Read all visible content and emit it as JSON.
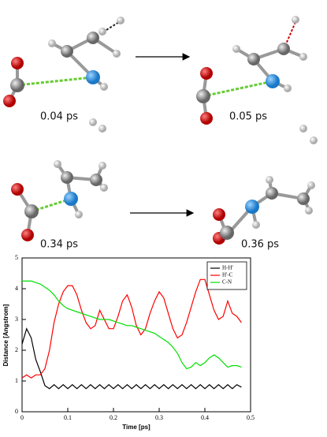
{
  "snapshots": {
    "labels": [
      "0.04 ps",
      "0.05 ps",
      "0.34 ps",
      "0.36 ps"
    ]
  },
  "chart_data": {
    "type": "line",
    "xlabel": "Time [ps]",
    "ylabel": "Distance [Angstrom]",
    "xlim": [
      0,
      0.5
    ],
    "ylim": [
      0,
      5
    ],
    "xticks": [
      0,
      0.1,
      0.2,
      0.3,
      0.4,
      0.5
    ],
    "yticks": [
      0,
      1,
      2,
      3,
      4,
      5
    ],
    "legend": "top-right",
    "x": [
      0,
      0.01,
      0.02,
      0.03,
      0.04,
      0.05,
      0.06,
      0.07,
      0.08,
      0.09,
      0.1,
      0.11,
      0.12,
      0.13,
      0.14,
      0.15,
      0.16,
      0.17,
      0.18,
      0.19,
      0.2,
      0.21,
      0.22,
      0.23,
      0.24,
      0.25,
      0.26,
      0.27,
      0.28,
      0.29,
      0.3,
      0.31,
      0.32,
      0.33,
      0.34,
      0.35,
      0.36,
      0.37,
      0.38,
      0.39,
      0.4,
      0.41,
      0.42,
      0.43,
      0.44,
      0.45,
      0.46,
      0.47,
      0.48
    ],
    "series": [
      {
        "name": "H-H'",
        "color": "#000000",
        "values": [
          2.2,
          2.7,
          2.4,
          1.7,
          1.3,
          0.85,
          0.75,
          0.88,
          0.75,
          0.88,
          0.75,
          0.88,
          0.75,
          0.88,
          0.75,
          0.88,
          0.75,
          0.88,
          0.75,
          0.88,
          0.75,
          0.88,
          0.75,
          0.88,
          0.75,
          0.88,
          0.75,
          0.88,
          0.75,
          0.88,
          0.75,
          0.88,
          0.75,
          0.88,
          0.75,
          0.88,
          0.75,
          0.88,
          0.75,
          0.88,
          0.75,
          0.88,
          0.75,
          0.88,
          0.75,
          0.88,
          0.75,
          0.88,
          0.8
        ]
      },
      {
        "name": "H'-C",
        "color": "#ff0000",
        "values": [
          1.1,
          1.2,
          1.1,
          1.2,
          1.2,
          1.4,
          2.0,
          2.9,
          3.5,
          3.9,
          4.1,
          4.1,
          3.8,
          3.3,
          2.9,
          2.7,
          2.8,
          3.3,
          3.0,
          2.7,
          2.7,
          3.1,
          3.6,
          3.8,
          3.4,
          2.8,
          2.5,
          2.7,
          3.2,
          3.6,
          3.9,
          3.7,
          3.2,
          2.7,
          2.4,
          2.5,
          2.9,
          3.4,
          3.9,
          4.3,
          4.3,
          3.8,
          3.3,
          3.0,
          3.1,
          3.6,
          3.2,
          3.1,
          2.9
        ]
      },
      {
        "name": "C-N",
        "color": "#00e000",
        "values": [
          4.25,
          4.25,
          4.25,
          4.2,
          4.15,
          4.05,
          3.95,
          3.8,
          3.6,
          3.45,
          3.35,
          3.3,
          3.25,
          3.2,
          3.15,
          3.1,
          3.05,
          3.0,
          3.0,
          3.0,
          2.95,
          2.9,
          2.85,
          2.8,
          2.8,
          2.75,
          2.7,
          2.65,
          2.6,
          2.55,
          2.45,
          2.35,
          2.25,
          2.1,
          1.9,
          1.6,
          1.4,
          1.45,
          1.6,
          1.5,
          1.6,
          1.75,
          1.85,
          1.75,
          1.6,
          1.45,
          1.5,
          1.5,
          1.45
        ]
      }
    ]
  }
}
